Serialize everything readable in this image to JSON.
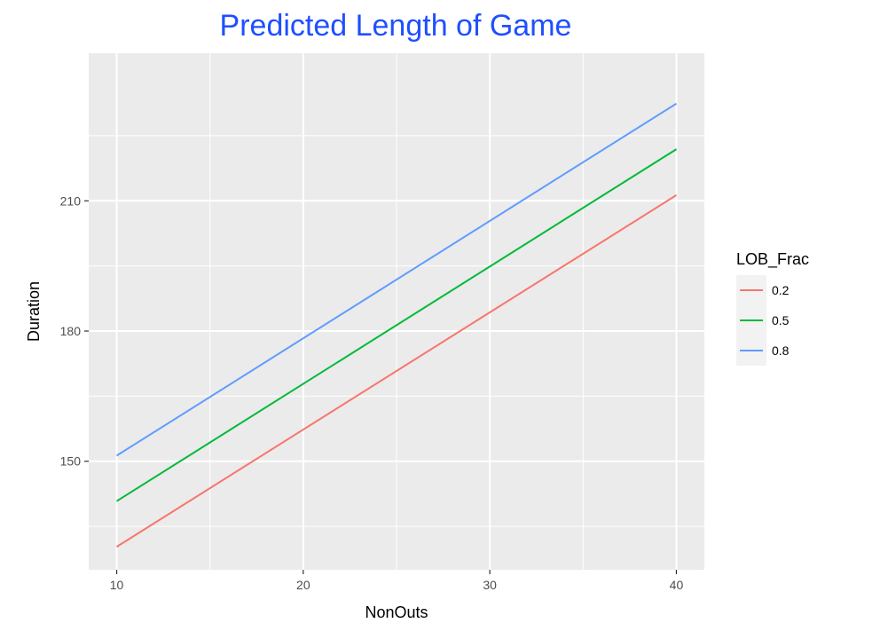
{
  "chart_data": {
    "type": "line",
    "title": "Predicted Length of Game",
    "title_color": "#1f4fff",
    "xlabel": "NonOuts",
    "ylabel": "Duration",
    "xlim": [
      8.5,
      41.5
    ],
    "ylim": [
      125,
      244
    ],
    "x_ticks": [
      10,
      20,
      30,
      40
    ],
    "x_minor_ticks": [
      15,
      25,
      35
    ],
    "y_ticks": [
      150,
      180,
      210
    ],
    "y_minor_ticks": [
      135,
      165,
      195,
      225
    ],
    "grid": true,
    "panel_background": "#ebebeb",
    "legend_position": "right",
    "legend_title": "LOB_Frac",
    "series": [
      {
        "name": "0.2",
        "color": "#f8766d",
        "x": [
          10,
          40
        ],
        "y": [
          130.3,
          211.3
        ]
      },
      {
        "name": "0.5",
        "color": "#00ba38",
        "x": [
          10,
          40
        ],
        "y": [
          140.8,
          221.9
        ]
      },
      {
        "name": "0.8",
        "color": "#619cff",
        "x": [
          10,
          40
        ],
        "y": [
          151.3,
          232.4
        ]
      }
    ]
  }
}
